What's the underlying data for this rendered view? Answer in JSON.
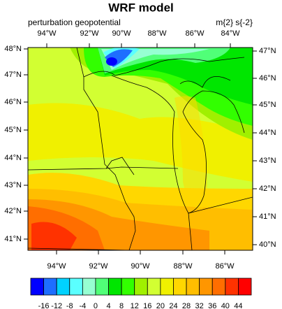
{
  "title": "WRF model",
  "left_string": "perturbation geopotential",
  "right_string": "m{2} s{-2}",
  "top_lon_labels": [
    "94°W",
    "92°W",
    "90°W",
    "88°W",
    "86°W",
    "84°W"
  ],
  "bottom_lon_labels": [
    "94°W",
    "92°W",
    "90°W",
    "88°W",
    "86°W"
  ],
  "left_lat_labels": [
    "48°N",
    "47°N",
    "46°N",
    "45°N",
    "44°N",
    "43°N",
    "42°N",
    "41°N"
  ],
  "right_lat_labels": [
    "47°N",
    "46°N",
    "45°N",
    "44°N",
    "43°N",
    "42°N",
    "41°N",
    "40°N"
  ],
  "colorbar": {
    "levels": [
      -16,
      -12,
      -8,
      -4,
      0,
      4,
      8,
      12,
      16,
      20,
      24,
      28,
      32,
      36,
      40,
      44
    ],
    "colors": [
      "#0000ff",
      "#1e6eff",
      "#00d2ff",
      "#5affff",
      "#96ffd2",
      "#50ff78",
      "#00e600",
      "#32ff00",
      "#a0f000",
      "#d2ff32",
      "#f0f000",
      "#ffd700",
      "#ffbe00",
      "#ff9600",
      "#ff6e00",
      "#ff3200",
      "#ff0000"
    ]
  }
}
